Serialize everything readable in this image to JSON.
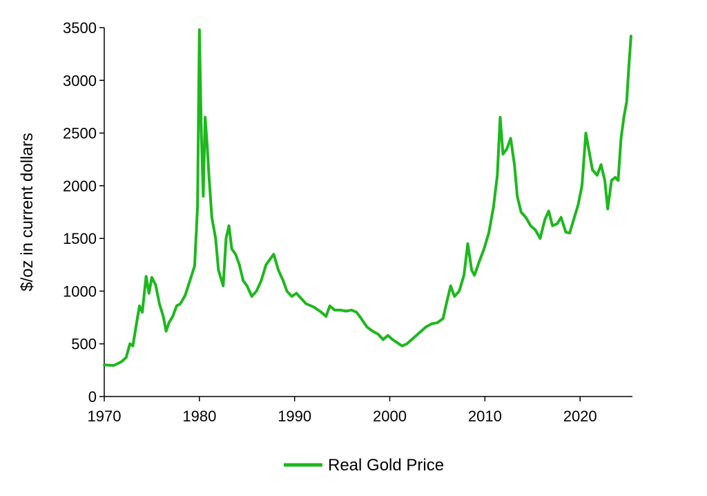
{
  "chart_data": {
    "type": "line",
    "title": "",
    "xlabel": "",
    "ylabel": "$/oz in current dollars",
    "xlim": [
      1970,
      2025.5
    ],
    "ylim": [
      0,
      3500
    ],
    "x_ticks": [
      "1970",
      "1980",
      "1990",
      "2000",
      "2010",
      "2020"
    ],
    "y_ticks": [
      "0",
      "500",
      "1000",
      "1500",
      "2000",
      "2500",
      "3000",
      "3500"
    ],
    "grid": false,
    "legend": "bottom-center",
    "series": [
      {
        "name": "Real Gold Price",
        "color": "#1db81d",
        "points": [
          [
            1970.0,
            300
          ],
          [
            1971.0,
            295
          ],
          [
            1971.8,
            330
          ],
          [
            1972.3,
            370
          ],
          [
            1972.7,
            500
          ],
          [
            1973.0,
            480
          ],
          [
            1973.4,
            700
          ],
          [
            1973.7,
            860
          ],
          [
            1974.0,
            800
          ],
          [
            1974.4,
            1140
          ],
          [
            1974.7,
            980
          ],
          [
            1975.0,
            1130
          ],
          [
            1975.4,
            1060
          ],
          [
            1975.8,
            880
          ],
          [
            1976.2,
            760
          ],
          [
            1976.5,
            620
          ],
          [
            1976.8,
            700
          ],
          [
            1977.2,
            760
          ],
          [
            1977.6,
            860
          ],
          [
            1978.0,
            880
          ],
          [
            1978.5,
            960
          ],
          [
            1979.0,
            1100
          ],
          [
            1979.5,
            1240
          ],
          [
            1979.8,
            1800
          ],
          [
            1980.0,
            3480
          ],
          [
            1980.2,
            2500
          ],
          [
            1980.4,
            1900
          ],
          [
            1980.6,
            2650
          ],
          [
            1980.8,
            2400
          ],
          [
            1981.0,
            2100
          ],
          [
            1981.3,
            1700
          ],
          [
            1981.7,
            1500
          ],
          [
            1982.0,
            1200
          ],
          [
            1982.5,
            1050
          ],
          [
            1982.8,
            1500
          ],
          [
            1983.1,
            1620
          ],
          [
            1983.4,
            1400
          ],
          [
            1983.8,
            1350
          ],
          [
            1984.2,
            1250
          ],
          [
            1984.6,
            1100
          ],
          [
            1985.0,
            1050
          ],
          [
            1985.5,
            950
          ],
          [
            1986.0,
            1000
          ],
          [
            1986.5,
            1100
          ],
          [
            1987.0,
            1250
          ],
          [
            1987.4,
            1300
          ],
          [
            1987.8,
            1350
          ],
          [
            1988.3,
            1200
          ],
          [
            1988.8,
            1100
          ],
          [
            1989.2,
            1000
          ],
          [
            1989.7,
            950
          ],
          [
            1990.2,
            980
          ],
          [
            1990.7,
            930
          ],
          [
            1991.2,
            880
          ],
          [
            1992.0,
            850
          ],
          [
            1992.8,
            800
          ],
          [
            1993.3,
            760
          ],
          [
            1993.7,
            860
          ],
          [
            1994.2,
            820
          ],
          [
            1994.8,
            820
          ],
          [
            1995.4,
            810
          ],
          [
            1996.0,
            820
          ],
          [
            1996.5,
            800
          ],
          [
            1997.0,
            740
          ],
          [
            1997.6,
            660
          ],
          [
            1998.2,
            620
          ],
          [
            1998.8,
            590
          ],
          [
            1999.3,
            540
          ],
          [
            1999.8,
            580
          ],
          [
            2000.3,
            540
          ],
          [
            2000.8,
            510
          ],
          [
            2001.3,
            480
          ],
          [
            2001.8,
            500
          ],
          [
            2002.3,
            540
          ],
          [
            2002.8,
            580
          ],
          [
            2003.3,
            620
          ],
          [
            2003.8,
            660
          ],
          [
            2004.4,
            690
          ],
          [
            2005.0,
            700
          ],
          [
            2005.6,
            740
          ],
          [
            2006.0,
            900
          ],
          [
            2006.4,
            1050
          ],
          [
            2006.8,
            950
          ],
          [
            2007.3,
            1000
          ],
          [
            2007.8,
            1150
          ],
          [
            2008.2,
            1450
          ],
          [
            2008.6,
            1200
          ],
          [
            2008.9,
            1150
          ],
          [
            2009.4,
            1280
          ],
          [
            2009.9,
            1400
          ],
          [
            2010.4,
            1550
          ],
          [
            2010.9,
            1800
          ],
          [
            2011.3,
            2100
          ],
          [
            2011.6,
            2650
          ],
          [
            2011.9,
            2300
          ],
          [
            2012.3,
            2350
          ],
          [
            2012.7,
            2450
          ],
          [
            2013.1,
            2200
          ],
          [
            2013.4,
            1900
          ],
          [
            2013.8,
            1750
          ],
          [
            2014.3,
            1700
          ],
          [
            2014.8,
            1620
          ],
          [
            2015.3,
            1580
          ],
          [
            2015.8,
            1500
          ],
          [
            2016.3,
            1680
          ],
          [
            2016.7,
            1760
          ],
          [
            2017.1,
            1620
          ],
          [
            2017.6,
            1640
          ],
          [
            2018.0,
            1700
          ],
          [
            2018.5,
            1560
          ],
          [
            2018.9,
            1550
          ],
          [
            2019.4,
            1700
          ],
          [
            2019.8,
            1820
          ],
          [
            2020.2,
            2000
          ],
          [
            2020.6,
            2500
          ],
          [
            2020.9,
            2350
          ],
          [
            2021.3,
            2150
          ],
          [
            2021.8,
            2100
          ],
          [
            2022.2,
            2200
          ],
          [
            2022.6,
            2050
          ],
          [
            2022.9,
            1780
          ],
          [
            2023.3,
            2050
          ],
          [
            2023.7,
            2080
          ],
          [
            2024.0,
            2050
          ],
          [
            2024.3,
            2450
          ],
          [
            2024.6,
            2650
          ],
          [
            2024.9,
            2800
          ],
          [
            2025.1,
            3100
          ],
          [
            2025.35,
            3420
          ]
        ]
      }
    ]
  }
}
